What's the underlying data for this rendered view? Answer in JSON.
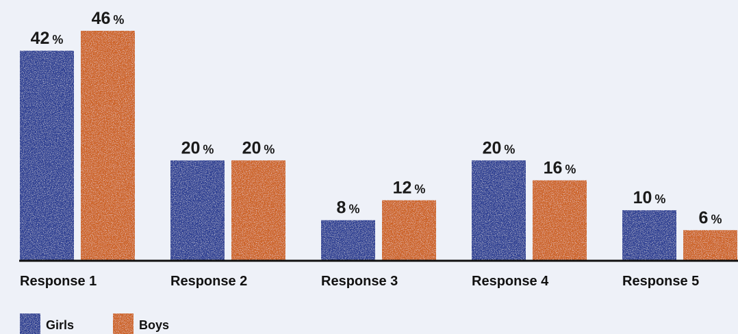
{
  "chart_data": {
    "type": "bar",
    "categories": [
      "Response 1",
      "Response 2",
      "Response 3",
      "Response 4",
      "Response 5"
    ],
    "series": [
      {
        "name": "Girls",
        "values": [
          42,
          20,
          8,
          20,
          10
        ],
        "color": "#2f3f93"
      },
      {
        "name": "Boys",
        "values": [
          46,
          20,
          12,
          16,
          6
        ],
        "color": "#cc6328"
      }
    ],
    "value_suffix": "%",
    "ylim": [
      0,
      46
    ],
    "grid": false,
    "legend_position": "bottom-left"
  }
}
